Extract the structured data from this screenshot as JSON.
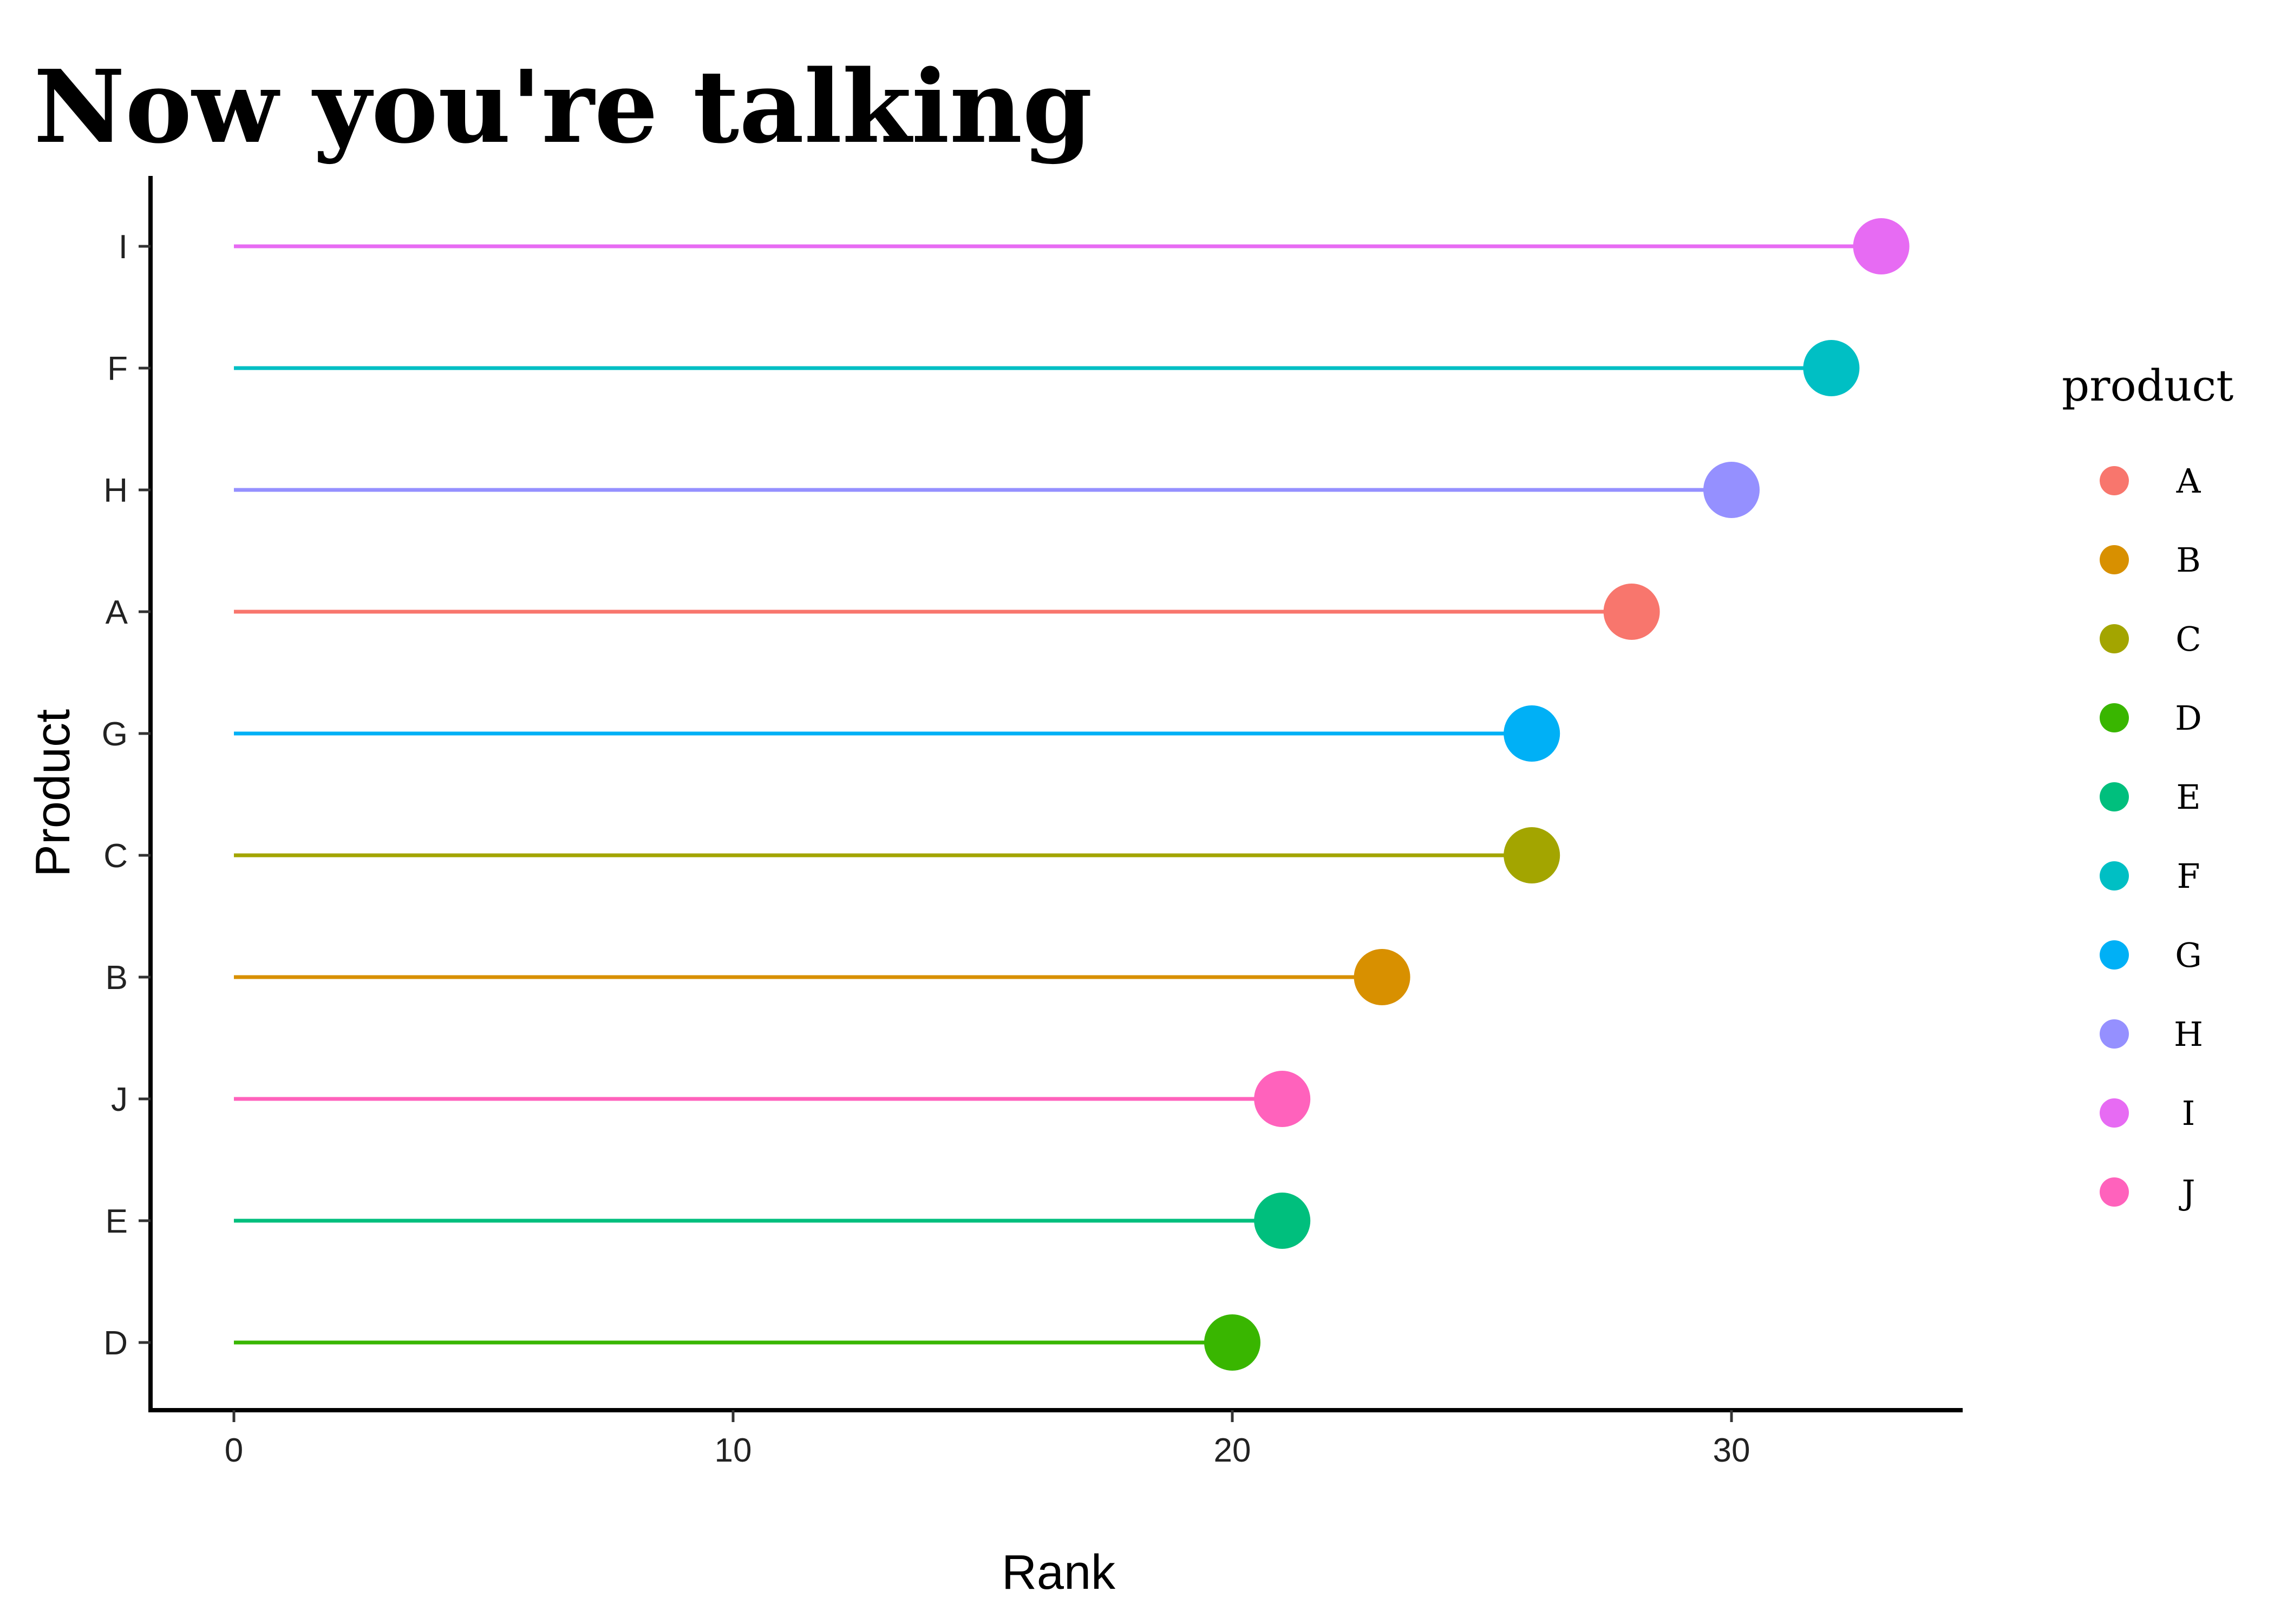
{
  "chart_data": {
    "type": "lollipop",
    "title": "Now you're talking",
    "xlabel": "Rank",
    "ylabel": "Product",
    "xlim": [
      -1.7,
      34.6
    ],
    "x_ticks": [
      0,
      10,
      20,
      30
    ],
    "grid": false,
    "legend_title": "product",
    "legend_position": "right",
    "series": [
      {
        "product": "I",
        "value": 33,
        "color": "#E76BF3"
      },
      {
        "product": "F",
        "value": 32,
        "color": "#00BFC4"
      },
      {
        "product": "H",
        "value": 30,
        "color": "#9590FF"
      },
      {
        "product": "A",
        "value": 28,
        "color": "#F8766D"
      },
      {
        "product": "G",
        "value": 26,
        "color": "#00B0F6"
      },
      {
        "product": "C",
        "value": 26,
        "color": "#A3A500"
      },
      {
        "product": "B",
        "value": 23,
        "color": "#D89000"
      },
      {
        "product": "J",
        "value": 21,
        "color": "#FF62BC"
      },
      {
        "product": "E",
        "value": 21,
        "color": "#00BF7D"
      },
      {
        "product": "D",
        "value": 20,
        "color": "#39B600"
      }
    ],
    "legend_items": [
      {
        "label": "A",
        "color": "#F8766D"
      },
      {
        "label": "B",
        "color": "#D89000"
      },
      {
        "label": "C",
        "color": "#A3A500"
      },
      {
        "label": "D",
        "color": "#39B600"
      },
      {
        "label": "E",
        "color": "#00BF7D"
      },
      {
        "label": "F",
        "color": "#00BFC4"
      },
      {
        "label": "G",
        "color": "#00B0F6"
      },
      {
        "label": "H",
        "color": "#9590FF"
      },
      {
        "label": "I",
        "color": "#E76BF3"
      },
      {
        "label": "J",
        "color": "#FF62BC"
      }
    ]
  }
}
